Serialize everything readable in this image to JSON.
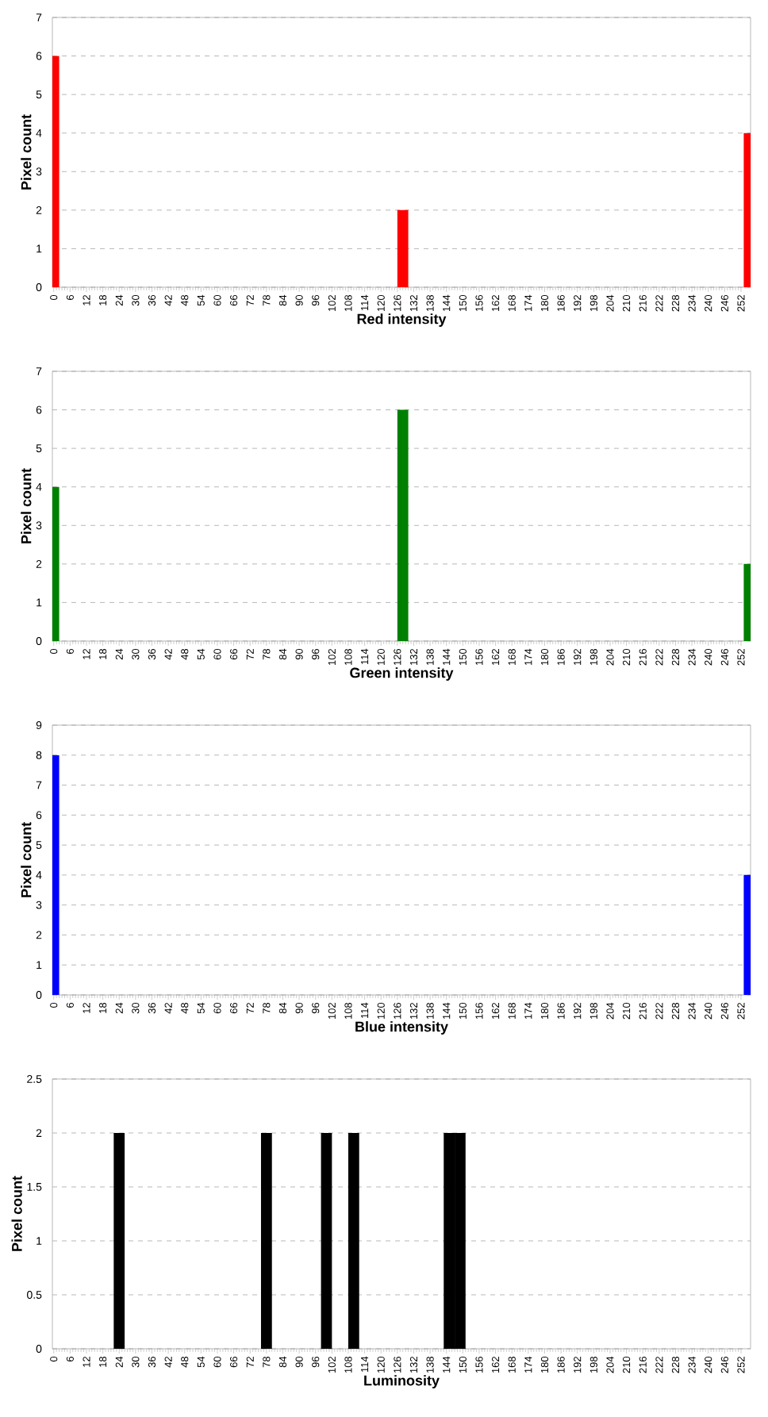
{
  "chart_data": [
    {
      "type": "bar",
      "x": [
        0,
        128,
        255
      ],
      "values": [
        6,
        2,
        4
      ],
      "color": "#ff0000",
      "xlabel": "Red intensity",
      "ylabel": "Pixel count",
      "xlim": [
        -0.5,
        255.5
      ],
      "xticks": [
        0,
        6,
        12,
        18,
        24,
        30,
        36,
        42,
        48,
        54,
        60,
        66,
        72,
        78,
        84,
        90,
        96,
        102,
        108,
        114,
        120,
        126,
        132,
        138,
        144,
        150,
        156,
        162,
        168,
        174,
        180,
        186,
        192,
        198,
        204,
        210,
        216,
        222,
        228,
        234,
        240,
        246,
        252
      ],
      "ylim": [
        0,
        7
      ],
      "yticks": [
        0,
        1,
        2,
        3,
        4,
        5,
        6,
        7
      ],
      "grid": "y"
    },
    {
      "type": "bar",
      "x": [
        0,
        128,
        255
      ],
      "values": [
        4,
        6,
        2
      ],
      "color": "#008000",
      "xlabel": "Green intensity",
      "ylabel": "Pixel count",
      "xlim": [
        -0.5,
        255.5
      ],
      "xticks": [
        0,
        6,
        12,
        18,
        24,
        30,
        36,
        42,
        48,
        54,
        60,
        66,
        72,
        78,
        84,
        90,
        96,
        102,
        108,
        114,
        120,
        126,
        132,
        138,
        144,
        150,
        156,
        162,
        168,
        174,
        180,
        186,
        192,
        198,
        204,
        210,
        216,
        222,
        228,
        234,
        240,
        246,
        252
      ],
      "ylim": [
        0,
        7
      ],
      "yticks": [
        0,
        1,
        2,
        3,
        4,
        5,
        6,
        7
      ],
      "grid": "y"
    },
    {
      "type": "bar",
      "x": [
        0,
        255
      ],
      "values": [
        8,
        4
      ],
      "color": "#0000ff",
      "xlabel": "Blue intensity",
      "ylabel": "Pixel count",
      "xlim": [
        -0.5,
        255.5
      ],
      "xticks": [
        0,
        6,
        12,
        18,
        24,
        30,
        36,
        42,
        48,
        54,
        60,
        66,
        72,
        78,
        84,
        90,
        96,
        102,
        108,
        114,
        120,
        126,
        132,
        138,
        144,
        150,
        156,
        162,
        168,
        174,
        180,
        186,
        192,
        198,
        204,
        210,
        216,
        222,
        228,
        234,
        240,
        246,
        252
      ],
      "ylim": [
        0,
        9
      ],
      "yticks": [
        0,
        1,
        2,
        3,
        4,
        5,
        6,
        7,
        8,
        9
      ],
      "grid": "y"
    },
    {
      "type": "bar",
      "x": [
        24,
        78,
        100,
        110,
        145,
        149
      ],
      "values": [
        2,
        2,
        2,
        2,
        2,
        2
      ],
      "color": "#000000",
      "xlabel": "Luminosity",
      "ylabel": "Pixel count",
      "xlim": [
        -0.5,
        255.5
      ],
      "xticks": [
        0,
        6,
        12,
        18,
        24,
        30,
        36,
        42,
        48,
        54,
        60,
        66,
        72,
        78,
        84,
        90,
        96,
        102,
        108,
        114,
        120,
        126,
        132,
        138,
        144,
        150,
        156,
        162,
        168,
        174,
        180,
        186,
        192,
        198,
        204,
        210,
        216,
        222,
        228,
        234,
        240,
        246,
        252
      ],
      "ylim": [
        0,
        2.5
      ],
      "yticks": [
        0,
        0.5,
        1,
        1.5,
        2,
        2.5
      ],
      "grid": "y"
    }
  ]
}
